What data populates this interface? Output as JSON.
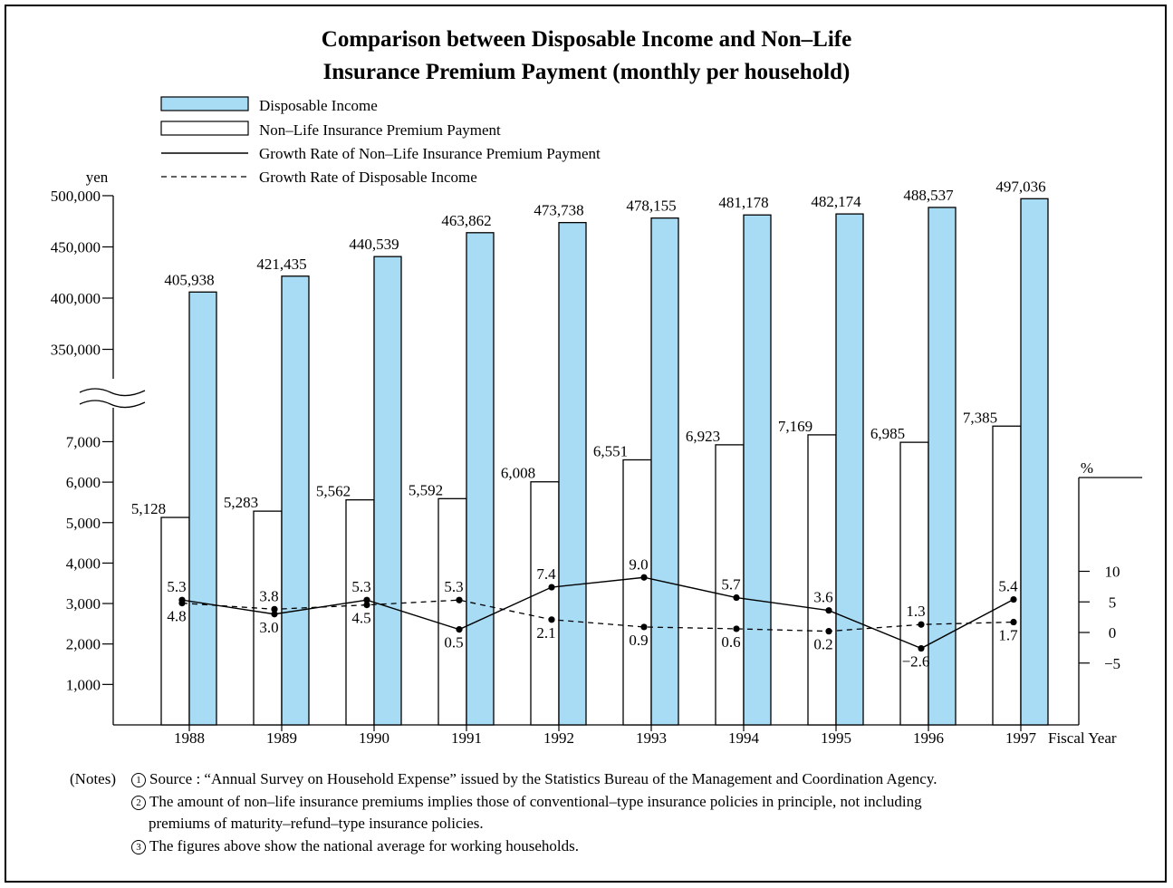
{
  "chart_data": {
    "type": "bar",
    "title": [
      "Comparison between Disposable Income and Non–Life",
      "Insurance Premium Payment (monthly per household)"
    ],
    "categories": [
      "1988",
      "1989",
      "1990",
      "1991",
      "1992",
      "1993",
      "1994",
      "1995",
      "1996",
      "1997"
    ],
    "xlabel": "Fiscal Year",
    "ylabel_left": "yen",
    "ylabel_right": "%",
    "y_ticks_upper": [
      "350,000",
      "400,000",
      "450,000",
      "500,000"
    ],
    "y_ticks_lower": [
      "1,000",
      "2,000",
      "3,000",
      "4,000",
      "5,000",
      "6,000",
      "7,000"
    ],
    "y_ticks_right": [
      "10",
      "5",
      "0",
      "−5"
    ],
    "axis_break": true,
    "legend": [
      {
        "label": "Disposable Income",
        "style": "bar-blue"
      },
      {
        "label": "Non–Life Insurance Premium Payment",
        "style": "bar-white"
      },
      {
        "label": "Growth Rate of Non–Life Insurance Premium Payment",
        "style": "solid-line"
      },
      {
        "label": "Growth Rate of Disposable Income",
        "style": "dashed-line"
      }
    ],
    "series": [
      {
        "name": "Disposable Income",
        "axis": "left-upper",
        "values": [
          405938,
          421435,
          440539,
          463862,
          473738,
          478155,
          481178,
          482174,
          488537,
          497036
        ],
        "labels": [
          "405,938",
          "421,435",
          "440,539",
          "463,862",
          "473,738",
          "478,155",
          "481,178",
          "482,174",
          "488,537",
          "497,036"
        ]
      },
      {
        "name": "Non–Life Insurance Premium Payment",
        "axis": "left-lower",
        "values": [
          5128,
          5283,
          5562,
          5592,
          6008,
          6551,
          6923,
          7169,
          6985,
          7385
        ],
        "labels": [
          "5,128",
          "5,283",
          "5,562",
          "5,592",
          "6,008",
          "6,551",
          "6,923",
          "7,169",
          "6,985",
          "7,385"
        ]
      },
      {
        "name": "Growth Rate of Non–Life Insurance Premium Payment",
        "axis": "right",
        "values": [
          5.3,
          3.0,
          5.3,
          0.5,
          7.4,
          9.0,
          5.7,
          3.6,
          -2.6,
          5.4
        ],
        "labels": [
          "5.3",
          "3.0",
          "5.3",
          "0.5",
          "7.4",
          "9.0",
          "5.7",
          "3.6",
          "−2.6",
          "5.4"
        ]
      },
      {
        "name": "Growth Rate of Disposable Income",
        "axis": "right",
        "values": [
          4.8,
          3.8,
          4.5,
          5.3,
          2.1,
          0.9,
          0.6,
          0.2,
          1.3,
          1.7
        ],
        "labels": [
          "4.8",
          "3.8",
          "4.5",
          "5.3",
          "2.1",
          "0.9",
          "0.6",
          "0.2",
          "1.3",
          "1.7"
        ]
      }
    ],
    "colors": {
      "income_bar": "#a8dcf5",
      "premium_bar": "#ffffff",
      "stroke": "#000000"
    }
  },
  "notes": {
    "prefix": "(Notes)",
    "items": [
      {
        "num": "1",
        "lines": [
          "Source : “Annual Survey on Household Expense” issued by the Statistics Bureau of the Management and Coordination Agency."
        ]
      },
      {
        "num": "2",
        "lines": [
          "The amount of non–life insurance premiums implies those of conventional–type insurance policies in principle, not including",
          "premiums of maturity–refund–type insurance policies."
        ]
      },
      {
        "num": "3",
        "lines": [
          "The figures above show the national average for working households."
        ]
      }
    ]
  }
}
